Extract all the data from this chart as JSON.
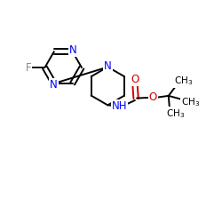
{
  "background_color": "#ffffff",
  "bond_color": "#000000",
  "N_color": "#0000ff",
  "O_color": "#cc0000",
  "F_color": "#888888",
  "C_color": "#000000",
  "font_size": 8.5,
  "lw": 1.4,
  "figsize": [
    2.5,
    2.5
  ],
  "dpi": 100,
  "xlim": [
    0,
    10
  ],
  "ylim": [
    0,
    10
  ]
}
